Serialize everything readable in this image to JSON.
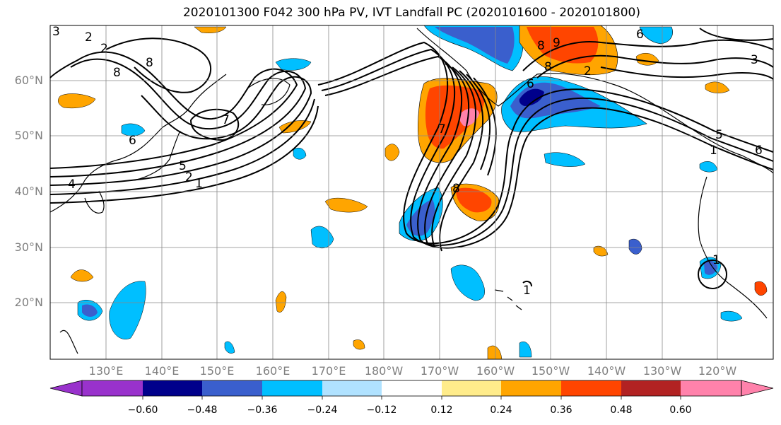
{
  "title": "2020101300 F042 300 hPa PV, IVT Landfall PC (2020101600 - 2020101800)",
  "map": {
    "lon_range": [
      120,
      250
    ],
    "lat_range": [
      10,
      70
    ],
    "lat_labels": [
      "60°N",
      "50°N",
      "40°N",
      "30°N",
      "20°N"
    ],
    "lon_labels": [
      "130°E",
      "140°E",
      "150°E",
      "160°E",
      "170°E",
      "180°W",
      "170°W",
      "160°W",
      "150°W",
      "140°W",
      "130°W",
      "120°W"
    ],
    "contour_labels": [
      "2",
      "3",
      "2",
      "8",
      "7",
      "6",
      "5",
      "2",
      "4",
      "1",
      "8",
      "8",
      "8",
      "7",
      "6",
      "5",
      "1",
      "8",
      "9",
      "2",
      "6",
      "3",
      "6",
      "1",
      "1"
    ],
    "background_color": "#ffffff",
    "coastline_color": "#000000",
    "grid_color": "#888888"
  },
  "colorbar": {
    "tick_labels": [
      "−0.60",
      "−0.48",
      "−0.36",
      "−0.24",
      "−0.12",
      "0.12",
      "0.24",
      "0.36",
      "0.48",
      "0.60"
    ],
    "colors": [
      "#9932cc",
      "#00008b",
      "#3a5fcd",
      "#00bfff",
      "#b0e2ff",
      "#ffffff",
      "#ffec8b",
      "#ffa500",
      "#ff4500",
      "#b22222",
      "#ff82ab"
    ],
    "extend": "both"
  }
}
